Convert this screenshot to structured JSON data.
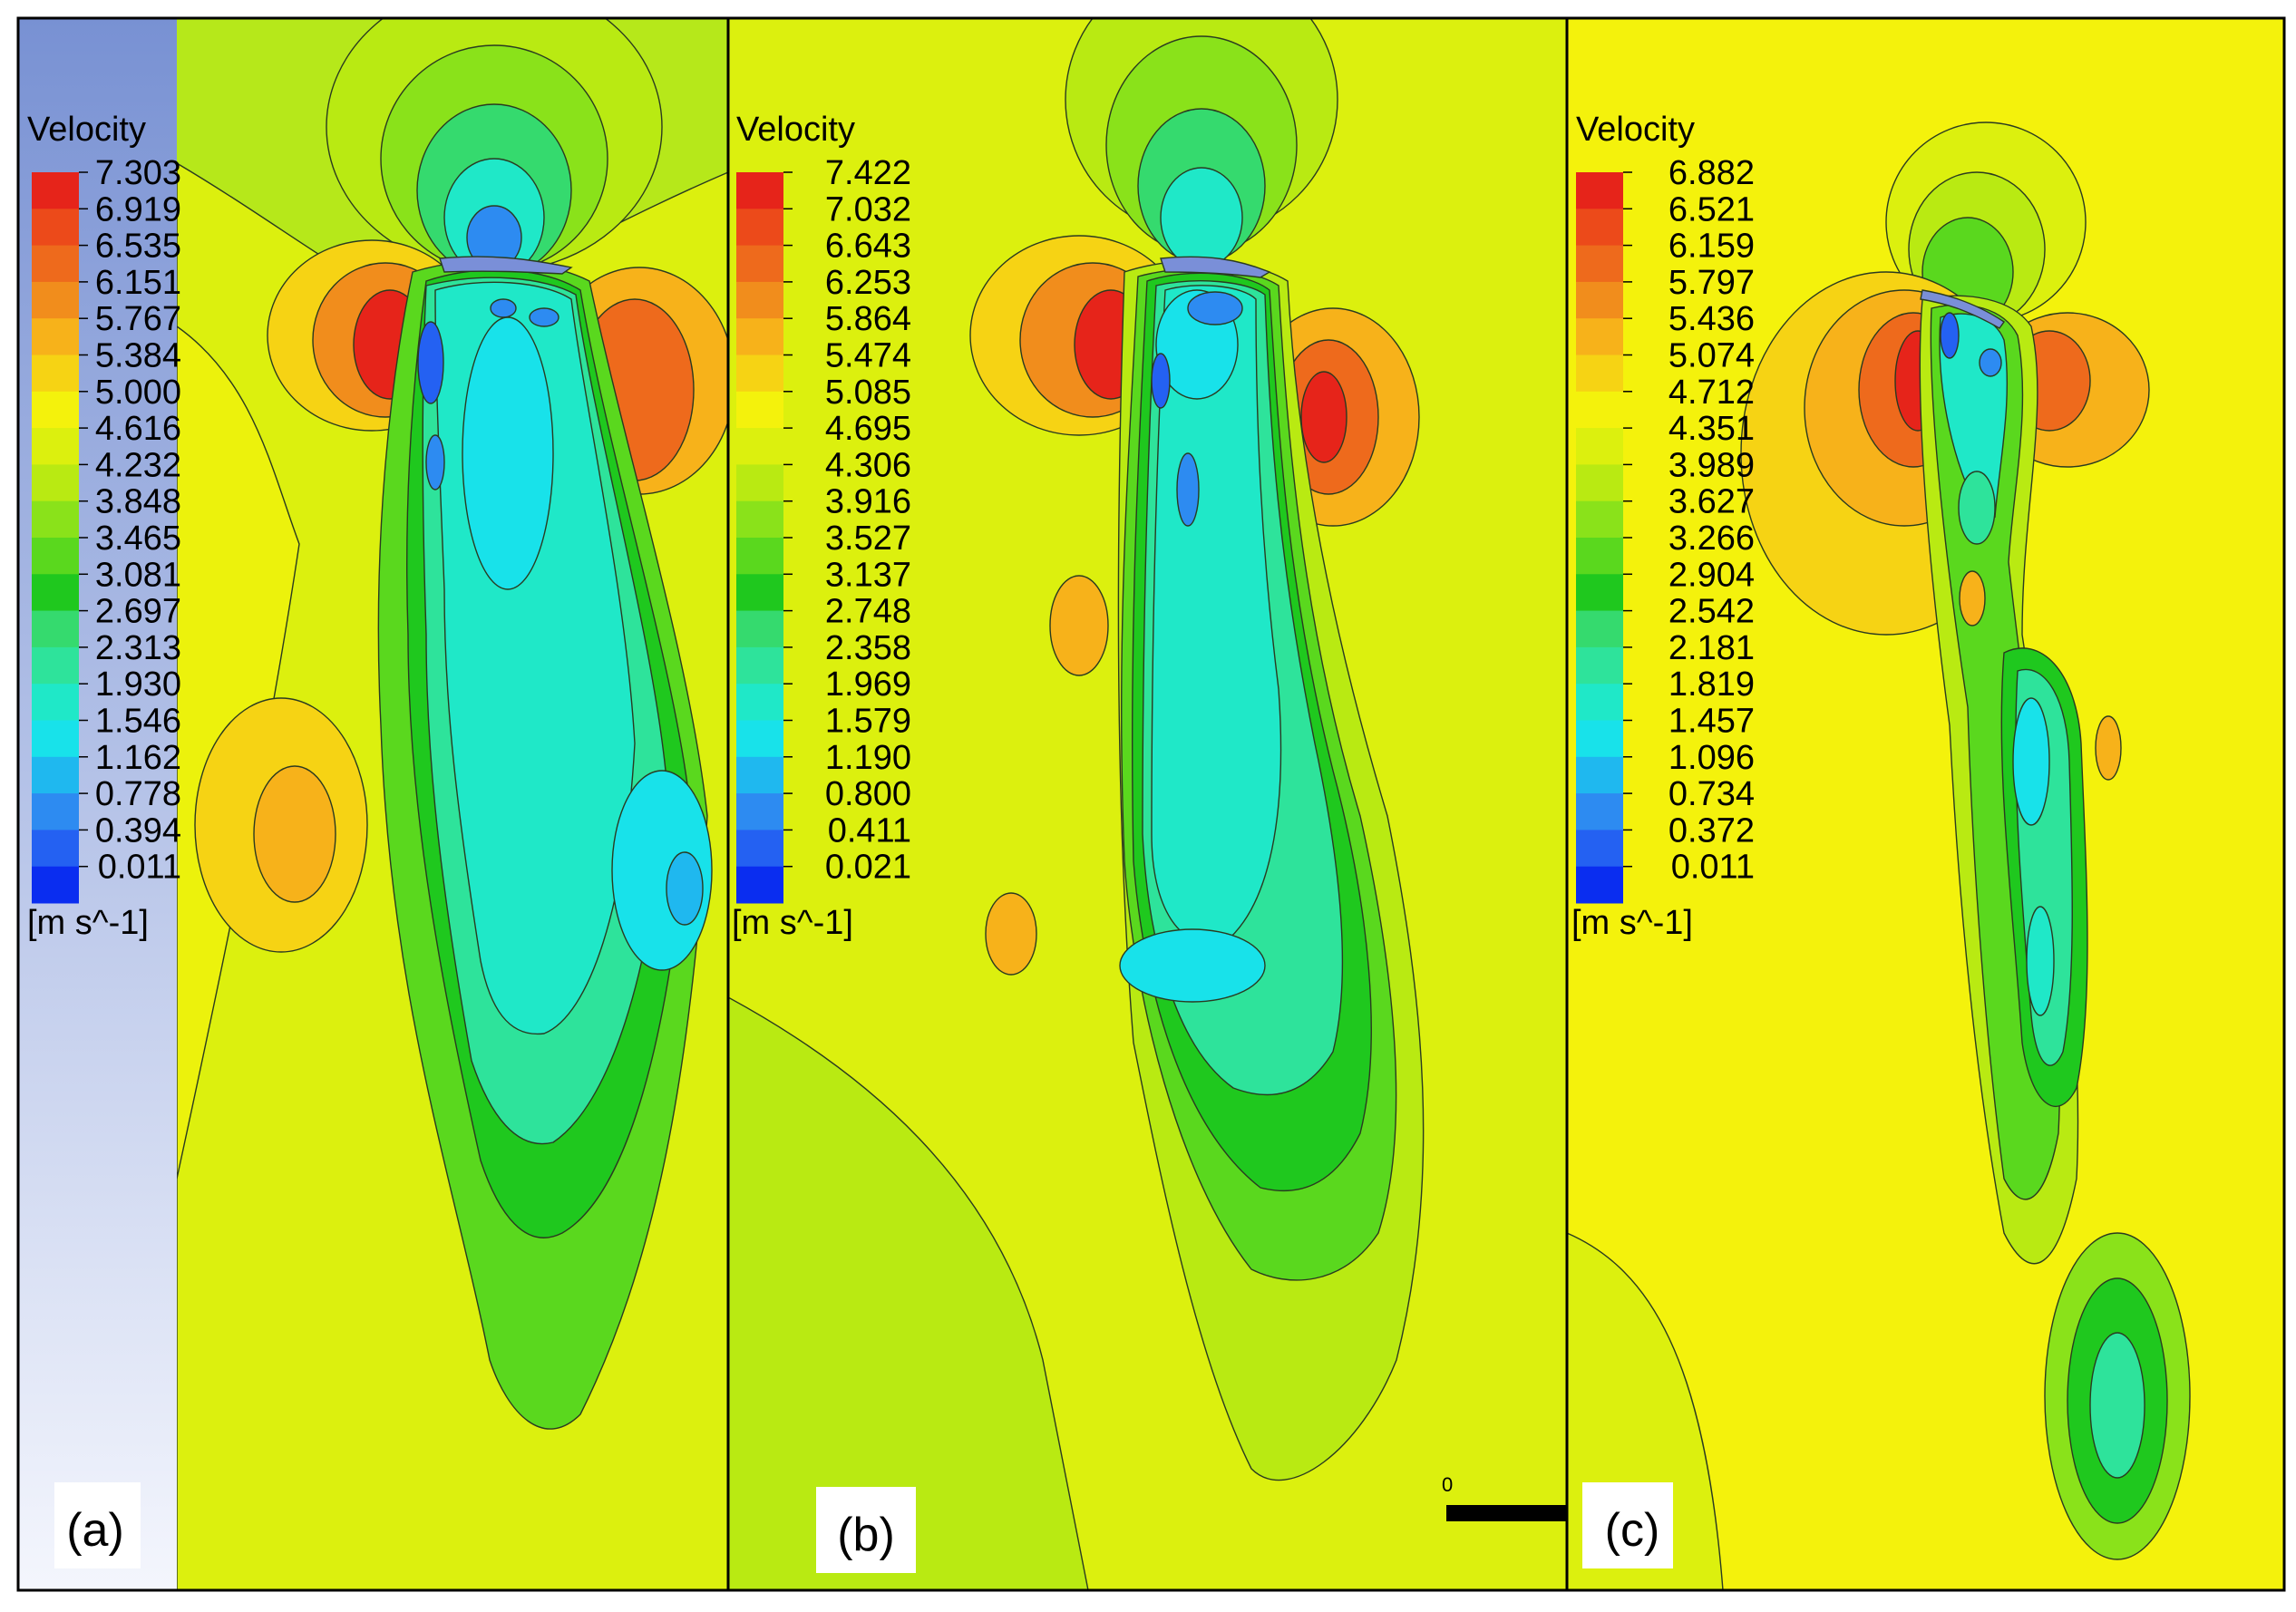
{
  "colorbar_colors": [
    "#0a2df0",
    "#2461f2",
    "#2d8bf1",
    "#1fb8ef",
    "#18e2ea",
    "#1fe8c8",
    "#2ee39b",
    "#35da6e",
    "#1fc81e",
    "#5ad81e",
    "#8ae21a",
    "#b9ea12",
    "#dcf00e",
    "#f4f20c",
    "#f6d314",
    "#f7b21a",
    "#f18d1c",
    "#ee6a1c",
    "#ec4a1a",
    "#e6241a"
  ],
  "panels": [
    {
      "id": "a",
      "label": "(a)",
      "legend": {
        "title": "Velocity",
        "ticks": [
          "7.303",
          "6.919",
          "6.535",
          "6.151",
          "5.767",
          "5.384",
          "5.000",
          "4.616",
          "4.232",
          "3.848",
          "3.465",
          "3.081",
          "2.697",
          "2.313",
          "1.930",
          "1.546",
          "1.162",
          "0.778",
          "0.394",
          "0.011"
        ],
        "unit": "[m s^-1]"
      }
    },
    {
      "id": "b",
      "label": "(b)",
      "legend": {
        "title": "Velocity",
        "ticks": [
          "7.422",
          "7.032",
          "6.643",
          "6.253",
          "5.864",
          "5.474",
          "5.085",
          "4.695",
          "4.306",
          "3.916",
          "3.527",
          "3.137",
          "2.748",
          "2.358",
          "1.969",
          "1.579",
          "1.190",
          "0.800",
          "0.411",
          "0.021"
        ],
        "unit": "[m s^-1]"
      }
    },
    {
      "id": "c",
      "label": "(c)",
      "legend": {
        "title": "Velocity",
        "ticks": [
          "6.882",
          "6.521",
          "6.159",
          "5.797",
          "5.436",
          "5.074",
          "4.712",
          "4.351",
          "3.989",
          "3.627",
          "3.266",
          "2.904",
          "2.542",
          "2.181",
          "1.819",
          "1.457",
          "1.096",
          "0.734",
          "0.372",
          "0.011"
        ],
        "unit": "[m s^-1]"
      }
    }
  ],
  "scale_bar": {
    "zero_label": "0"
  }
}
